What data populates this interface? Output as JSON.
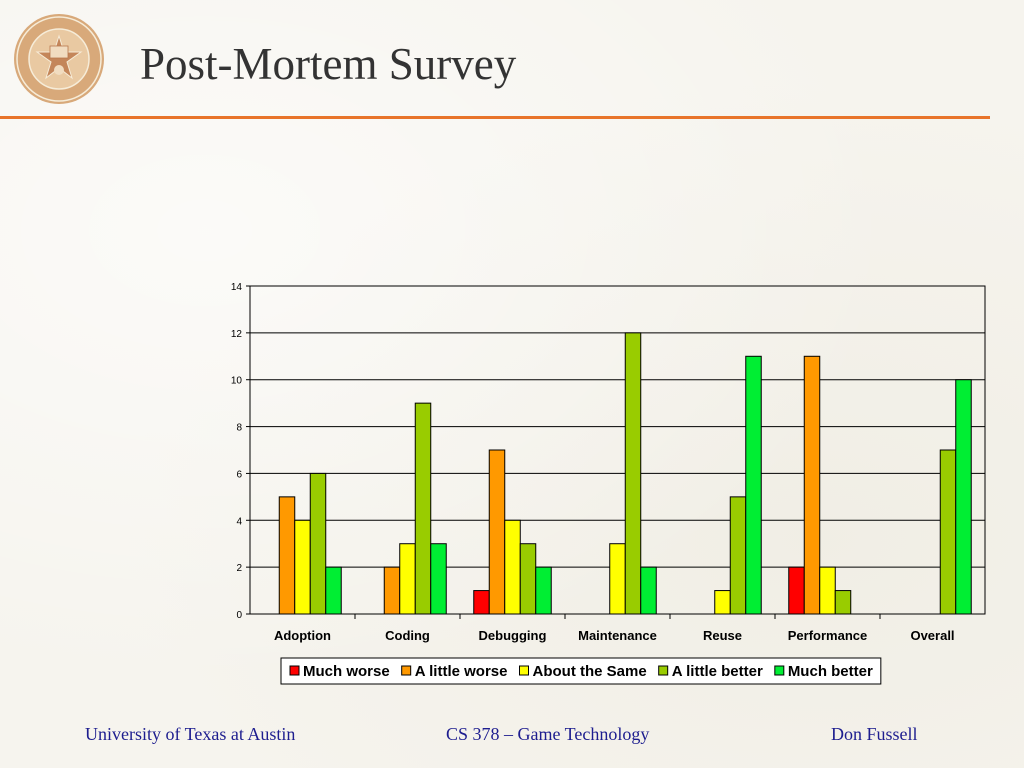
{
  "slide": {
    "title": "Post-Mortem Survey",
    "footer_left": "University of Texas at Austin",
    "footer_center": "CS 378 – Game Technology",
    "footer_right": "Don Fussell",
    "seal_text": "THE UNIVERSITY OF TEXAS AT AUSTIN",
    "accent_color": "#e8742a",
    "footer_color": "#1d1d8f"
  },
  "chart_data": {
    "type": "bar",
    "categories": [
      "Adoption",
      "Coding",
      "Debugging",
      "Maintenance",
      "Reuse",
      "Performance",
      "Overall"
    ],
    "series": [
      {
        "name": "Much worse",
        "color": "#ff0000",
        "values": [
          0,
          0,
          1,
          0,
          0,
          2,
          0
        ]
      },
      {
        "name": "A little worse",
        "color": "#ff9900",
        "values": [
          5,
          2,
          7,
          0,
          0,
          11,
          0
        ]
      },
      {
        "name": "About the Same",
        "color": "#ffff00",
        "values": [
          4,
          3,
          4,
          3,
          1,
          2,
          0
        ]
      },
      {
        "name": "A little better",
        "color": "#99cc00",
        "values": [
          6,
          9,
          3,
          12,
          5,
          1,
          7
        ]
      },
      {
        "name": "Much better",
        "color": "#00ee33",
        "values": [
          2,
          3,
          2,
          2,
          11,
          0,
          10
        ]
      }
    ],
    "ylim": [
      0,
      14
    ],
    "yticks": [
      0,
      2,
      4,
      6,
      8,
      10,
      12,
      14
    ],
    "grid": true,
    "legend": "bottom"
  }
}
